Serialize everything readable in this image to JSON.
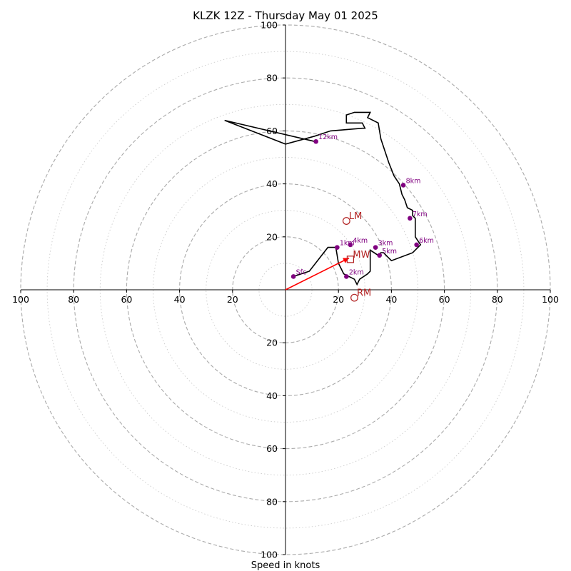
{
  "chart_data": {
    "type": "hodograph",
    "title": "KLZK 12Z - Thursday May 01 2025",
    "xlabel": "Speed in knots",
    "ring_max": 100,
    "ring_step": 10,
    "tick_labels": [
      "20",
      "40",
      "60",
      "80",
      "100"
    ],
    "colors": {
      "trace": "#000000",
      "height_markers": "#800080",
      "motion": "#b22222",
      "arrow": "#ff0000",
      "rings": "#aaaaaa"
    },
    "hodograph": {
      "u": [
        3,
        9,
        16,
        19,
        20,
        22,
        26,
        27,
        28,
        31,
        32,
        32,
        35,
        36,
        37,
        40,
        48,
        51,
        49,
        49,
        48,
        48,
        46,
        45,
        44,
        43,
        41,
        39,
        36,
        35,
        31,
        32,
        26,
        23,
        23,
        29,
        30,
        29,
        17,
        11,
        0,
        -23,
        11
      ],
      "v": [
        5,
        7,
        16,
        16,
        10,
        6,
        4,
        2,
        4,
        6,
        7,
        15,
        13,
        14,
        14,
        11,
        14,
        17,
        20,
        27,
        28,
        30,
        31,
        34,
        36,
        40,
        43,
        48,
        57,
        63,
        65,
        67,
        67,
        66,
        63,
        63,
        61,
        61,
        60,
        58,
        55,
        64,
        56
      ]
    },
    "height_markers": [
      {
        "label": "Sfc",
        "u": 3,
        "v": 5
      },
      {
        "label": "1km",
        "u": 19.5,
        "v": 16
      },
      {
        "label": "2km",
        "u": 23,
        "v": 5
      },
      {
        "label": "3km",
        "u": 34,
        "v": 16
      },
      {
        "label": "4km",
        "u": 24.5,
        "v": 17
      },
      {
        "label": "5km",
        "u": 35.5,
        "v": 13
      },
      {
        "label": "6km",
        "u": 49.5,
        "v": 17
      },
      {
        "label": "7km",
        "u": 47,
        "v": 27
      },
      {
        "label": "8km",
        "u": 44.5,
        "v": 39.5
      },
      {
        "label": "12km",
        "u": 11.5,
        "v": 56
      }
    ],
    "storm_motion": [
      {
        "label": "LM",
        "u": 23,
        "v": 26,
        "marker": "circle"
      },
      {
        "label": "MW",
        "u": 24.5,
        "v": 11.5,
        "marker": "square"
      },
      {
        "label": "RM",
        "u": 26,
        "v": -3,
        "marker": "circle"
      }
    ],
    "shear_arrow": {
      "u0": 0,
      "v0": 0,
      "u1": 24,
      "v1": 12
    }
  }
}
